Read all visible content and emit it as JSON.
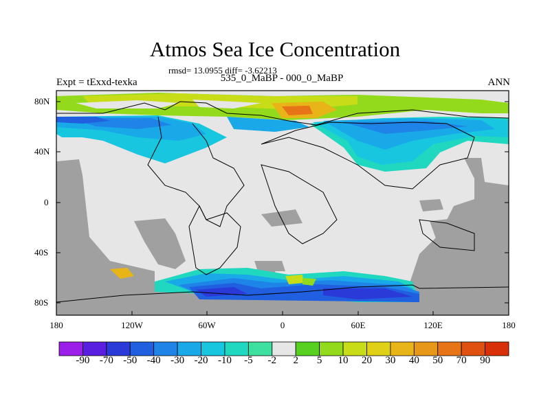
{
  "title": "Atmos Sea Ice Concentration",
  "stats": "rmsd= 13.0955  diff= -3.62213",
  "subtitle": "535_0_MaBP - 000_0_MaBP",
  "left_label": "Expt = tExxd-texka",
  "right_label": "ANN",
  "lat_ticks": [
    "80N",
    "40N",
    "0",
    "40S",
    "80S"
  ],
  "lon_ticks": [
    "180",
    "120W",
    "60W",
    "0",
    "60E",
    "120E",
    "180"
  ],
  "colorbar": {
    "labels": [
      "-90",
      "-70",
      "-50",
      "-40",
      "-30",
      "-20",
      "-10",
      "-5",
      "-2",
      "2",
      "5",
      "10",
      "20",
      "30",
      "40",
      "50",
      "70",
      "90"
    ],
    "colors": [
      "#9b1fe8",
      "#5a1ee0",
      "#2a3ad8",
      "#1f5fe0",
      "#1f84e8",
      "#19a8e8",
      "#18c6e0",
      "#20d8c0",
      "#3ee0a0",
      "#e6e6e6",
      "#58d020",
      "#94da1c",
      "#c8dc18",
      "#e0d018",
      "#e8b418",
      "#e89818",
      "#e87418",
      "#e05010",
      "#d83008"
    ]
  },
  "land_color": "#a0a0a0",
  "ocean_color": "#e6e6e6"
}
